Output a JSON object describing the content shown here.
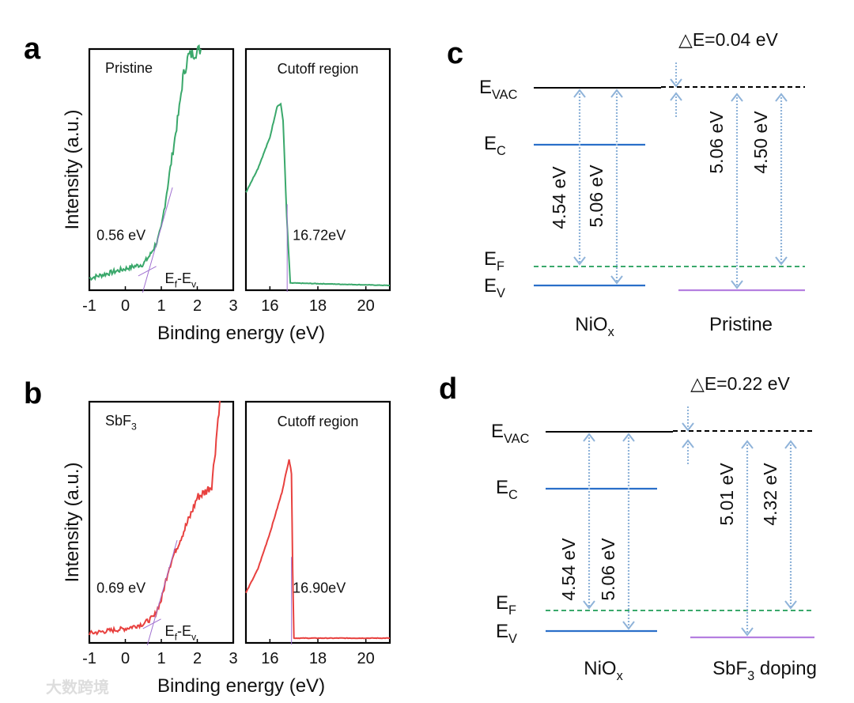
{
  "panel_letters": [
    "a",
    "b",
    "c",
    "d"
  ],
  "watermark": "大数跨境",
  "colors": {
    "pristine": "#3aa86b",
    "sbf3": "#e8413f",
    "fit": "#a070d0",
    "nio_band": "#2a6fc9",
    "film_band": "#b57fe0",
    "fermi": "#3aa86b",
    "arrow": "#8fb3d9",
    "vac": "#000000"
  },
  "chart_data": [
    {
      "type": "line",
      "panel": "a",
      "sample_label": "Pristine",
      "cutoff_title": "Cutoff region",
      "ylabel": "Intensity (a.u.)",
      "xlabel": "Binding energy (eV)",
      "valence": {
        "xlim": [
          -1,
          3
        ],
        "ticks": [
          "-1",
          "0",
          "1",
          "2",
          "3"
        ],
        "ylim": [
          0,
          1
        ],
        "x": [
          -1,
          -0.5,
          0,
          0.5,
          0.7,
          0.9,
          1.0,
          1.1,
          1.2,
          1.3,
          1.5,
          1.6,
          1.75,
          2.1
        ],
        "y": [
          0.04,
          0.06,
          0.08,
          0.1,
          0.14,
          0.2,
          0.25,
          0.35,
          0.45,
          0.55,
          0.75,
          0.88,
          0.97,
          1.0
        ],
        "annotation": "0.56 eV",
        "onset_label": {
          "main": "E",
          "sub": "f",
          "mid": "-E",
          "sub2": "v"
        },
        "onset": 0.56
      },
      "cutoff": {
        "xlim": [
          15,
          21
        ],
        "ticks": [
          "16",
          "18",
          "20"
        ],
        "ylim": [
          0,
          1
        ],
        "x": [
          15,
          15.5,
          16,
          16.3,
          16.45,
          16.55,
          16.7,
          16.85,
          17,
          21
        ],
        "y": [
          0.4,
          0.5,
          0.63,
          0.76,
          0.77,
          0.7,
          0.3,
          0.02,
          0.02,
          0.01
        ],
        "annotation": "16.72eV",
        "cutoff": 16.72
      }
    },
    {
      "type": "line",
      "panel": "b",
      "sample_label": {
        "main": "SbF",
        "sub": "3"
      },
      "cutoff_title": "Cutoff region",
      "ylabel": "Intensity (a.u.)",
      "xlabel": "Binding energy (eV)",
      "valence": {
        "xlim": [
          -1,
          3
        ],
        "ticks": [
          "-1",
          "0",
          "1",
          "2",
          "3"
        ],
        "ylim": [
          0,
          1
        ],
        "x": [
          -1,
          0,
          0.5,
          0.8,
          1.0,
          1.2,
          1.4,
          1.6,
          1.8,
          2.0,
          2.2,
          2.4,
          2.5,
          2.6,
          2.65
        ],
        "y": [
          0.03,
          0.05,
          0.07,
          0.1,
          0.17,
          0.3,
          0.38,
          0.45,
          0.52,
          0.6,
          0.62,
          0.65,
          0.8,
          0.97,
          1.0
        ],
        "annotation": "0.69 eV",
        "onset_label": {
          "main": "E",
          "sub": "f",
          "mid": "-E",
          "sub2": "v"
        },
        "onset": 0.69
      },
      "cutoff": {
        "xlim": [
          15,
          21
        ],
        "ticks": [
          "16",
          "18",
          "20"
        ],
        "ylim": [
          0,
          1
        ],
        "x": [
          15,
          15.5,
          16,
          16.5,
          16.8,
          16.9,
          16.95,
          17.0,
          21
        ],
        "y": [
          0.2,
          0.3,
          0.45,
          0.62,
          0.76,
          0.7,
          0.3,
          0.01,
          0.01
        ],
        "annotation": "16.90eV",
        "cutoff": 16.9
      }
    },
    {
      "type": "diagram",
      "panel": "c",
      "delta": "△E=0.04 eV",
      "levels": {
        "vac": {
          "main": "E",
          "sub": "VAC"
        },
        "c": {
          "main": "E",
          "sub": "C"
        },
        "f": {
          "main": "E",
          "sub": "F"
        },
        "v": {
          "main": "E",
          "sub": "V"
        }
      },
      "arrows": [
        "4.54 eV",
        "5.06 eV",
        "5.06 eV",
        "4.50 eV"
      ],
      "left_material": {
        "main": "NiO",
        "sub": "x"
      },
      "right_material": {
        "main": "Pristine",
        "sub": "",
        "tail": ""
      }
    },
    {
      "type": "diagram",
      "panel": "d",
      "delta": "△E=0.22 eV",
      "levels": {
        "vac": {
          "main": "E",
          "sub": "VAC"
        },
        "c": {
          "main": "E",
          "sub": "C"
        },
        "f": {
          "main": "E",
          "sub": "F"
        },
        "v": {
          "main": "E",
          "sub": "V"
        }
      },
      "arrows": [
        "4.54 eV",
        "5.06 eV",
        "5.01 eV",
        "4.32 eV"
      ],
      "left_material": {
        "main": "NiO",
        "sub": "x"
      },
      "right_material": {
        "main": "SbF",
        "sub": "3",
        "tail": " doping"
      }
    }
  ]
}
